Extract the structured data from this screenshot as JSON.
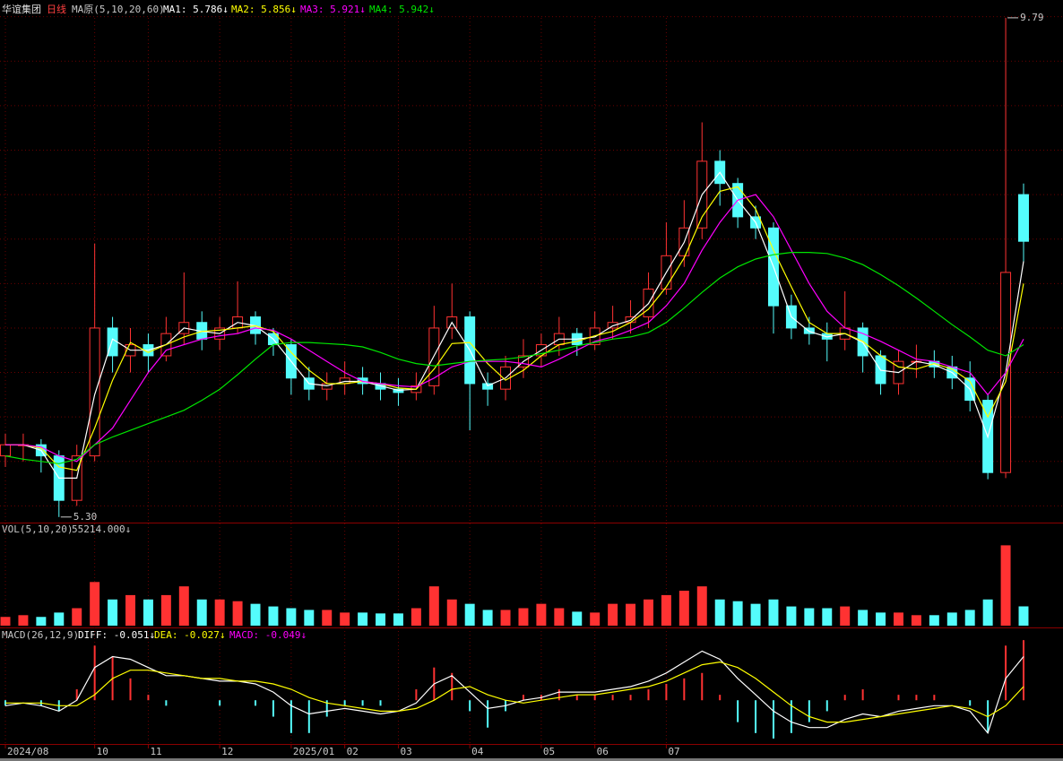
{
  "header": {
    "stock": "华谊集团",
    "period": "日线",
    "ma_title": "MA原(5,10,20,60)"
  },
  "chart_data": [
    {
      "type": "candlestick",
      "categories": [
        "2024/08",
        null,
        null,
        null,
        null,
        "10",
        null,
        null,
        "11",
        null,
        null,
        null,
        "12",
        null,
        null,
        null,
        "2025/01",
        null,
        null,
        "02",
        null,
        null,
        "03",
        null,
        null,
        null,
        "04",
        null,
        null,
        null,
        "05",
        null,
        null,
        "06",
        null,
        null,
        null,
        "07",
        null,
        null,
        null,
        null,
        null,
        null,
        null,
        null,
        null,
        null,
        null,
        null,
        null,
        null,
        null,
        null,
        null,
        null,
        null,
        null
      ],
      "open": [
        5.85,
        5.95,
        5.95,
        5.85,
        5.45,
        5.85,
        7.0,
        6.75,
        6.85,
        6.75,
        6.95,
        7.05,
        6.9,
        7.0,
        7.1,
        6.95,
        6.85,
        6.55,
        6.45,
        6.5,
        6.55,
        6.5,
        6.45,
        6.42,
        6.48,
        7.0,
        7.1,
        6.5,
        6.45,
        6.65,
        6.75,
        6.85,
        6.95,
        6.85,
        7.0,
        7.05,
        7.1,
        7.35,
        7.65,
        7.9,
        8.5,
        8.3,
        8.0,
        7.9,
        7.2,
        7.0,
        6.95,
        6.9,
        7.0,
        6.75,
        6.5,
        6.7,
        6.7,
        6.65,
        6.55,
        6.35,
        5.7,
        8.2
      ],
      "high": [
        6.05,
        6.05,
        6.0,
        5.9,
        5.95,
        7.76,
        7.1,
        7.0,
        6.95,
        7.1,
        7.5,
        7.15,
        7.1,
        7.42,
        7.15,
        7.0,
        6.9,
        6.65,
        6.6,
        6.7,
        6.65,
        6.6,
        6.55,
        6.6,
        7.2,
        7.4,
        7.15,
        6.6,
        6.75,
        6.9,
        6.95,
        7.1,
        7.0,
        7.15,
        7.2,
        7.25,
        7.5,
        7.95,
        8.15,
        8.85,
        8.6,
        8.35,
        8.1,
        7.95,
        7.3,
        7.1,
        7.05,
        7.33,
        7.05,
        6.8,
        6.8,
        6.85,
        6.8,
        6.75,
        6.7,
        6.4,
        9.79,
        8.3
      ],
      "low": [
        5.75,
        5.8,
        5.7,
        5.3,
        5.4,
        5.8,
        6.6,
        6.6,
        6.6,
        6.7,
        6.85,
        6.8,
        6.8,
        6.95,
        6.85,
        6.75,
        6.4,
        6.35,
        6.35,
        6.4,
        6.4,
        6.35,
        6.3,
        6.35,
        6.4,
        6.9,
        6.08,
        6.3,
        6.35,
        6.55,
        6.65,
        6.75,
        6.75,
        6.8,
        6.9,
        6.95,
        7.0,
        7.3,
        7.55,
        7.8,
        8.1,
        7.9,
        7.8,
        6.95,
        6.9,
        6.85,
        6.7,
        6.8,
        6.6,
        6.4,
        6.4,
        6.55,
        6.55,
        6.45,
        6.25,
        5.64,
        5.65,
        7.6
      ],
      "close": [
        5.95,
        5.95,
        5.85,
        5.45,
        5.85,
        7.0,
        6.75,
        6.85,
        6.75,
        6.95,
        7.05,
        6.9,
        7.0,
        7.1,
        6.95,
        6.85,
        6.55,
        6.45,
        6.5,
        6.55,
        6.5,
        6.45,
        6.42,
        6.48,
        7.0,
        7.1,
        6.5,
        6.45,
        6.65,
        6.75,
        6.85,
        6.95,
        6.85,
        7.0,
        7.05,
        7.1,
        7.35,
        7.65,
        7.9,
        8.5,
        8.3,
        8.0,
        7.9,
        7.2,
        7.0,
        6.95,
        6.9,
        7.0,
        6.75,
        6.5,
        6.7,
        6.7,
        6.65,
        6.55,
        6.35,
        5.7,
        7.5,
        7.78
      ],
      "up_color": "#ff3232",
      "down_color": "#54fcfc",
      "series": [
        {
          "name": "MA1: 5.786↓",
          "color": "#ffffff",
          "values": [
            5.95,
            5.95,
            5.9,
            5.65,
            5.65,
            6.4,
            6.9,
            6.8,
            6.8,
            6.85,
            7.0,
            6.97,
            6.95,
            7.05,
            7.02,
            6.9,
            6.7,
            6.5,
            6.48,
            6.52,
            6.52,
            6.48,
            6.44,
            6.45,
            6.75,
            7.05,
            6.8,
            6.48,
            6.55,
            6.7,
            6.8,
            6.9,
            6.9,
            6.92,
            7.02,
            7.07,
            7.22,
            7.5,
            7.77,
            8.2,
            8.4,
            8.15,
            7.95,
            7.55,
            7.1,
            6.97,
            6.92,
            6.95,
            6.87,
            6.62,
            6.6,
            6.7,
            6.67,
            6.6,
            6.45,
            6.02,
            6.6,
            7.6
          ]
        },
        {
          "name": "MA2: 5.856↓",
          "color": "#ffff00",
          "values": [
            5.95,
            5.95,
            5.92,
            5.75,
            5.72,
            6.1,
            6.53,
            6.87,
            6.78,
            6.85,
            6.92,
            6.97,
            6.98,
            7.0,
            7.02,
            6.97,
            6.78,
            6.62,
            6.5,
            6.5,
            6.52,
            6.5,
            6.46,
            6.45,
            6.63,
            6.86,
            6.87,
            6.68,
            6.53,
            6.62,
            6.75,
            6.85,
            6.88,
            6.93,
            6.97,
            7.05,
            7.17,
            7.37,
            7.63,
            8.0,
            8.23,
            8.27,
            8.07,
            7.7,
            7.37,
            7.05,
            6.95,
            6.95,
            6.88,
            6.75,
            6.65,
            6.63,
            6.68,
            6.63,
            6.52,
            6.2,
            6.52,
            7.4
          ]
        },
        {
          "name": "MA3: 5.921↓",
          "color": "#ff00ff",
          "values": [
            5.95,
            5.95,
            5.93,
            5.85,
            5.8,
            5.95,
            6.1,
            6.35,
            6.6,
            6.8,
            6.85,
            6.9,
            6.93,
            6.95,
            7.0,
            6.98,
            6.9,
            6.8,
            6.7,
            6.6,
            6.52,
            6.5,
            6.48,
            6.47,
            6.55,
            6.65,
            6.7,
            6.7,
            6.7,
            6.68,
            6.65,
            6.72,
            6.8,
            6.88,
            6.92,
            6.98,
            7.05,
            7.2,
            7.4,
            7.7,
            7.95,
            8.15,
            8.2,
            8.0,
            7.7,
            7.4,
            7.15,
            7.0,
            6.95,
            6.88,
            6.8,
            6.72,
            6.7,
            6.65,
            6.6,
            6.4,
            6.6,
            6.9
          ]
        },
        {
          "name": "MA4: 5.942↓",
          "color": "#00e600",
          "values": [
            5.85,
            5.82,
            5.8,
            5.78,
            5.82,
            5.95,
            6.02,
            6.08,
            6.14,
            6.2,
            6.26,
            6.35,
            6.45,
            6.58,
            6.72,
            6.85,
            6.87,
            6.87,
            6.86,
            6.85,
            6.83,
            6.78,
            6.72,
            6.68,
            6.66,
            6.68,
            6.7,
            6.71,
            6.72,
            6.74,
            6.77,
            6.8,
            6.84,
            6.87,
            6.9,
            6.92,
            6.96,
            7.05,
            7.18,
            7.32,
            7.45,
            7.55,
            7.62,
            7.66,
            7.68,
            7.68,
            7.67,
            7.63,
            7.57,
            7.48,
            7.38,
            7.27,
            7.15,
            7.03,
            6.92,
            6.8,
            6.75,
            6.85
          ]
        }
      ],
      "high_label": "9.79",
      "low_label": "5.30",
      "ylim": [
        5.25,
        9.91
      ],
      "yticks": [
        5.4,
        5.8,
        6.2,
        6.6,
        7.0,
        7.4,
        7.8,
        8.2,
        8.6,
        9.0,
        9.4,
        9.8
      ],
      "grid": true
    },
    {
      "type": "bar",
      "title": "VOL(5,10,20)",
      "label": "55214.000↓",
      "values": [
        25000,
        30000,
        25000,
        37500,
        50000,
        125000,
        75000,
        87500,
        75000,
        87500,
        112500,
        75000,
        75000,
        70000,
        62500,
        55000,
        50000,
        45000,
        45000,
        37500,
        37500,
        35000,
        35000,
        50000,
        112500,
        75000,
        62500,
        45000,
        45000,
        50000,
        62500,
        50000,
        40000,
        37500,
        62500,
        62500,
        75000,
        87500,
        100000,
        112500,
        75000,
        70000,
        62500,
        75000,
        55000,
        50000,
        50000,
        55000,
        45000,
        37500,
        37500,
        30000,
        30000,
        37500,
        45000,
        75000,
        230000,
        55214
      ],
      "ylim": [
        0,
        290000
      ]
    },
    {
      "type": "macd",
      "title": "MACD(26,12,9)",
      "series": [
        {
          "name": "DIFF: -0.051↓",
          "color": "#ffffff",
          "values": [
            -0.02,
            -0.01,
            -0.02,
            -0.04,
            0.0,
            0.12,
            0.16,
            0.15,
            0.12,
            0.09,
            0.09,
            0.08,
            0.07,
            0.07,
            0.06,
            0.03,
            -0.02,
            -0.05,
            -0.04,
            -0.03,
            -0.04,
            -0.05,
            -0.04,
            -0.01,
            0.06,
            0.09,
            0.03,
            -0.03,
            -0.02,
            0.0,
            0.01,
            0.03,
            0.03,
            0.03,
            0.04,
            0.05,
            0.07,
            0.1,
            0.14,
            0.18,
            0.15,
            0.08,
            0.02,
            -0.04,
            -0.08,
            -0.1,
            -0.1,
            -0.07,
            -0.05,
            -0.06,
            -0.04,
            -0.03,
            -0.02,
            -0.02,
            -0.04,
            -0.12,
            0.08,
            0.16
          ]
        },
        {
          "name": "DEA: -0.027↓",
          "color": "#ffff00",
          "values": [
            -0.01,
            -0.01,
            -0.01,
            -0.02,
            -0.02,
            0.02,
            0.08,
            0.11,
            0.11,
            0.1,
            0.09,
            0.08,
            0.08,
            0.07,
            0.07,
            0.06,
            0.04,
            0.01,
            -0.01,
            -0.02,
            -0.03,
            -0.04,
            -0.04,
            -0.03,
            0.0,
            0.04,
            0.05,
            0.02,
            0.0,
            -0.01,
            0.0,
            0.01,
            0.02,
            0.02,
            0.03,
            0.04,
            0.05,
            0.07,
            0.1,
            0.13,
            0.14,
            0.12,
            0.08,
            0.03,
            -0.02,
            -0.06,
            -0.08,
            -0.08,
            -0.07,
            -0.06,
            -0.05,
            -0.04,
            -0.03,
            -0.02,
            -0.03,
            -0.06,
            -0.02,
            0.05
          ]
        }
      ],
      "hist": {
        "name": "MACD: -0.049↓",
        "color": "#ff00ff",
        "values": [
          -0.02,
          0,
          -0.02,
          -0.04,
          0.04,
          0.2,
          0.16,
          0.08,
          0.02,
          -0.02,
          0,
          0,
          -0.02,
          0,
          -0.02,
          -0.06,
          -0.12,
          -0.12,
          -0.06,
          -0.02,
          -0.02,
          -0.02,
          0,
          0.04,
          0.12,
          0.1,
          -0.04,
          -0.1,
          -0.04,
          0.02,
          0.02,
          0.04,
          0.02,
          0.02,
          0.02,
          0.02,
          0.04,
          0.06,
          0.08,
          0.1,
          0.02,
          -0.08,
          -0.12,
          -0.14,
          -0.12,
          -0.08,
          -0.04,
          0.02,
          0.04,
          0,
          0.02,
          0.02,
          0.02,
          0,
          -0.02,
          -0.12,
          0.2,
          0.22
        ]
      },
      "ylim": [
        -0.16,
        0.26
      ]
    }
  ]
}
